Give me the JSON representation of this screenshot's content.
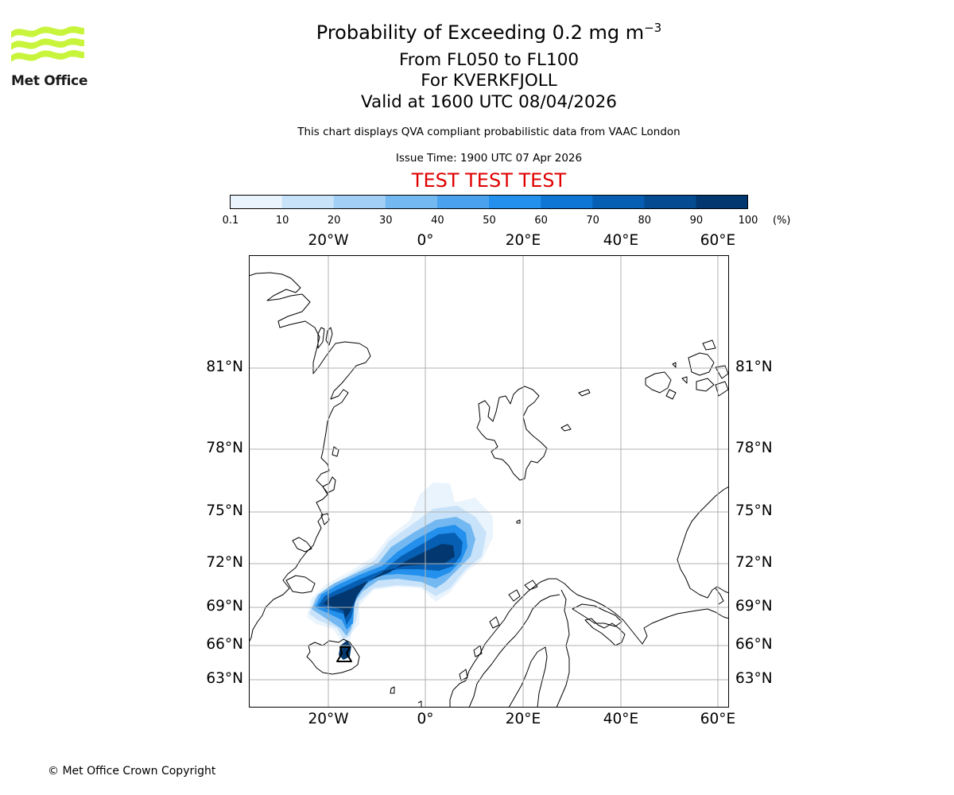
{
  "header": {
    "title_prefix": "Probability of Exceeding 0.2 mg m",
    "title_sup": "−3",
    "level_range": "From FL050 to FL100",
    "volcano": "For KVERKFJOLL",
    "valid_time": "Valid at 1600 UTC 08/04/2026",
    "disclaimer": "This chart displays QVA compliant probabilistic data from VAAC London",
    "issue_time": "Issue Time: 1900 UTC 07 Apr 2026",
    "test_banner": "TEST TEST TEST"
  },
  "logo": {
    "text": "Met Office",
    "color": "#c8f53c"
  },
  "colorbar": {
    "ticks": [
      "0.1",
      "10",
      "20",
      "30",
      "40",
      "50",
      "60",
      "70",
      "80",
      "90",
      "100"
    ],
    "unit": "(%)",
    "colors": [
      "#eaf4fd",
      "#c8e3f9",
      "#a2cff5",
      "#74b8f1",
      "#4aa2ee",
      "#2290ec",
      "#0e77d6",
      "#075fb4",
      "#044b92",
      "#02386f",
      "#012650"
    ]
  },
  "map": {
    "lon_labels": [
      "20°W",
      "0°",
      "20°E",
      "40°E",
      "60°E"
    ],
    "lat_labels": [
      "81°N",
      "78°N",
      "75°N",
      "72°N",
      "69°N",
      "66°N",
      "63°N"
    ],
    "grid_color": "#b0b0b0"
  },
  "footer": {
    "copyright": "© Met Office Crown Copyright"
  }
}
